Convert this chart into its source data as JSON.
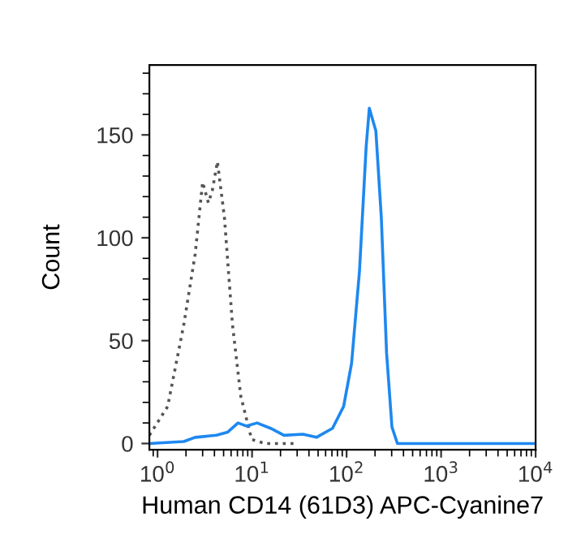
{
  "chart_data": {
    "type": "line",
    "xlabel": "Human CD14 (61D3) APC-Cyanine7",
    "ylabel": "Count",
    "log": "x",
    "xlim": [
      0.82,
      10000
    ],
    "xticks": [
      {
        "value": 1,
        "label": "10$^{0}$"
      },
      {
        "value": 10,
        "label": "10$^{1}$"
      },
      {
        "value": 100,
        "label": "10$^{2}$"
      },
      {
        "value": 1000,
        "label": "10$^{3}$"
      },
      {
        "value": 10000,
        "label": "10$^{4}$"
      }
    ],
    "ylim": [
      -3,
      184
    ],
    "yticks": [
      0,
      {
        "value": 10,
        "label": null
      },
      {
        "value": 20,
        "label": null
      },
      {
        "value": 30,
        "label": null
      },
      {
        "value": 40,
        "label": null
      },
      50,
      {
        "value": 60,
        "label": null
      },
      {
        "value": 70,
        "label": null
      },
      {
        "value": 80,
        "label": null
      },
      {
        "value": 90,
        "label": null
      },
      100,
      {
        "value": 110,
        "label": null
      },
      {
        "value": 120,
        "label": null
      },
      {
        "value": 130,
        "label": null
      },
      {
        "value": 140,
        "label": null
      },
      150,
      {
        "value": 160,
        "label": null
      },
      {
        "value": 170,
        "label": null
      },
      {
        "value": 180,
        "label": null
      }
    ],
    "grid": false,
    "legend": false,
    "series": [
      {
        "color": "#555555",
        "line_style": "dotted",
        "x": [
          0.82,
          1.28,
          1.9,
          2.5,
          3.0,
          3.45,
          3.8,
          4.3,
          5.1,
          6.2,
          7.6,
          9.9,
          13.8,
          30
        ],
        "values": [
          4,
          18,
          58,
          92,
          127,
          117,
          123,
          137,
          110,
          58,
          23,
          2,
          0,
          0
        ]
      },
      {
        "color": "#1e88f0",
        "line_style": "solid",
        "x": [
          0.82,
          1.9,
          2.5,
          4.2,
          5.5,
          7.1,
          8.7,
          11.3,
          15.7,
          21.8,
          34.5,
          48,
          71,
          93,
          113,
          137,
          161,
          174,
          204,
          233,
          265,
          302,
          345,
          10000
        ],
        "values": [
          0,
          1,
          3,
          4,
          5.5,
          10,
          8.5,
          10,
          7.4,
          4,
          4.5,
          3,
          7.4,
          18,
          39,
          84,
          144,
          163,
          152,
          110,
          44,
          8,
          0,
          0
        ]
      }
    ]
  }
}
